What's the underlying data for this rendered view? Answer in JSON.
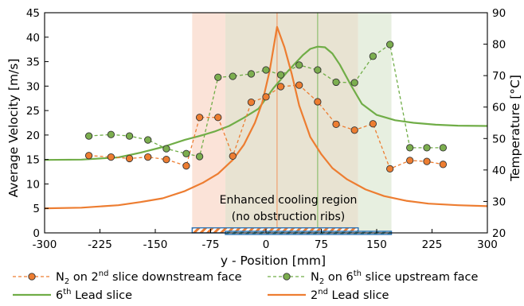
{
  "chart_data": {
    "type": "line",
    "xlabel": "y - Position [mm]",
    "ylabel_left": "Average Velocity [m/s]",
    "ylabel_right": "Temperature [°C]",
    "xlim": [
      -300,
      300
    ],
    "ylim_left": [
      0,
      45
    ],
    "ylim_right": [
      20,
      90
    ],
    "x_ticks": [
      -300,
      -225,
      -150,
      -75,
      0,
      75,
      150,
      225,
      300
    ],
    "y_left_ticks": [
      0,
      5,
      10,
      15,
      20,
      25,
      30,
      35,
      40,
      45
    ],
    "y_right_ticks": [
      20,
      30,
      40,
      50,
      60,
      70,
      80,
      90
    ],
    "grid": false,
    "legend_position": "bottom",
    "annotation": {
      "line1": "Enhanced cooling region",
      "line2": "(no obstruction ribs)"
    },
    "shaded_regions": [
      {
        "x": [
          -100,
          -55
        ],
        "color": "#fbe3d8"
      },
      {
        "x": [
          -55,
          125
        ],
        "color": "#e8e3d2"
      },
      {
        "x": [
          125,
          170
        ],
        "color": "#e7efe0"
      }
    ],
    "rib_bars": [
      {
        "x": [
          -100,
          125
        ],
        "axis": "right",
        "y": [
          20,
          21.6
        ],
        "edge": "#2e74b5",
        "hatch": "#ed7d31"
      },
      {
        "x": [
          -55,
          170
        ],
        "axis": "right",
        "y": [
          19.5,
          20.5
        ],
        "edge": "#2e74b5",
        "hatch": "#5fa8a8"
      }
    ],
    "vertical_markers": [
      {
        "x": 15,
        "color": "#f0a070"
      },
      {
        "x": 70,
        "color": "#8fc070"
      }
    ],
    "series": [
      {
        "name_prefix": "N",
        "name_sub": "2",
        "name_mid": " on 2",
        "name_sup": "nd",
        "name_suffix": " slice downstream face",
        "axis": "left",
        "style": "dashed-markers",
        "color": "#ed7d31",
        "marker_fill": "#ed7d31",
        "x": [
          -240,
          -210,
          -185,
          -160,
          -135,
          -108,
          -90,
          -65,
          -45,
          -20,
          0,
          20,
          45,
          70,
          95,
          120,
          145,
          168,
          195,
          218,
          240
        ],
        "y": [
          15.8,
          15.5,
          15.2,
          15.5,
          15.0,
          13.7,
          23.6,
          23.6,
          15.7,
          26.7,
          27.8,
          29.9,
          30.2,
          26.8,
          22.2,
          21.0,
          22.3,
          13.1,
          14.8,
          14.6,
          14.0
        ]
      },
      {
        "name_prefix": "N",
        "name_sub": "2",
        "name_mid": " on 6",
        "name_sup": "th",
        "name_suffix": " slice upstream face",
        "axis": "left",
        "style": "dashed-markers",
        "color": "#70ad47",
        "marker_fill": "#7cae4f",
        "x": [
          -240,
          -210,
          -185,
          -160,
          -135,
          -108,
          -90,
          -65,
          -45,
          -20,
          0,
          20,
          45,
          70,
          95,
          120,
          145,
          168,
          195,
          218,
          240
        ],
        "y": [
          19.8,
          20.1,
          19.8,
          19.0,
          17.2,
          16.2,
          15.6,
          31.8,
          32.0,
          32.5,
          33.3,
          32.3,
          34.3,
          33.3,
          30.8,
          30.7,
          36.1,
          38.5,
          17.4,
          17.4,
          17.4
        ]
      },
      {
        "name_pre": "6",
        "name_sup": "th",
        "name_suffix": " Lead slice",
        "axis": "right",
        "style": "solid",
        "color": "#70ad47",
        "x": [
          -300,
          -250,
          -200,
          -170,
          -140,
          -110,
          -90,
          -70,
          -50,
          -30,
          -10,
          10,
          30,
          50,
          60,
          70,
          80,
          90,
          100,
          115,
          130,
          150,
          175,
          200,
          230,
          260,
          300
        ],
        "y": [
          43.2,
          43.3,
          44.0,
          45.5,
          47.3,
          49.6,
          50.8,
          52.2,
          54.0,
          56.6,
          59.5,
          66.0,
          71.5,
          76.5,
          78.5,
          79.2,
          79.0,
          77.0,
          73.5,
          67.0,
          61.0,
          57.5,
          55.8,
          55.0,
          54.4,
          54.1,
          54.0
        ]
      },
      {
        "name_pre": "2",
        "name_sup": "nd",
        "name_suffix": " Lead slice",
        "axis": "right",
        "style": "solid",
        "color": "#ed7d31",
        "x": [
          -300,
          -250,
          -200,
          -170,
          -140,
          -110,
          -85,
          -65,
          -45,
          -30,
          -15,
          -5,
          5,
          15,
          25,
          35,
          45,
          60,
          75,
          90,
          110,
          135,
          160,
          190,
          220,
          260,
          300
        ],
        "y": [
          27.8,
          28.0,
          28.8,
          29.8,
          31.0,
          33.3,
          36.0,
          38.8,
          43.2,
          48.0,
          55.0,
          61.5,
          71.5,
          85.5,
          79.0,
          70.5,
          60.5,
          50.5,
          45.0,
          40.6,
          37.0,
          33.8,
          31.7,
          30.2,
          29.3,
          28.8,
          28.5
        ]
      }
    ]
  }
}
